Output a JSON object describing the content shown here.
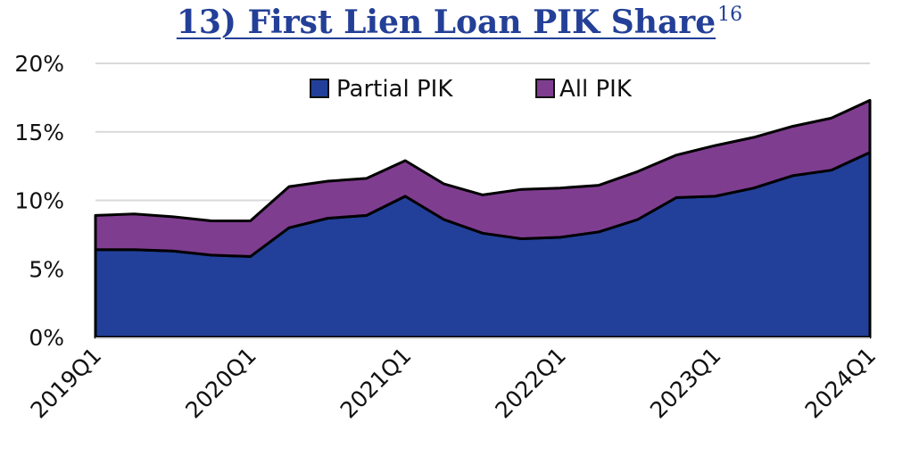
{
  "title": "13) First Lien Loan PIK Share",
  "title_superscript": "16",
  "chart_data": {
    "type": "area",
    "stacked": true,
    "title": "13) First Lien Loan PIK Share",
    "xlabel": "",
    "ylabel": "",
    "ylim": [
      0,
      20
    ],
    "yticks": [
      "0%",
      "5%",
      "10%",
      "15%",
      "20%"
    ],
    "xtick_labels": [
      "2019Q1",
      "2020Q1",
      "2021Q1",
      "2022Q1",
      "2023Q1",
      "2024Q1"
    ],
    "grid": "horizontal",
    "legend_position": "top-center-inside",
    "categories": [
      "2019Q1",
      "2019Q2",
      "2019Q3",
      "2019Q4",
      "2020Q1",
      "2020Q2",
      "2020Q3",
      "2020Q4",
      "2021Q1",
      "2021Q2",
      "2021Q3",
      "2021Q4",
      "2022Q1",
      "2022Q2",
      "2022Q3",
      "2022Q4",
      "2023Q1",
      "2023Q2",
      "2023Q3",
      "2023Q4",
      "2024Q1"
    ],
    "series": [
      {
        "name": "Partial PIK",
        "color": "#22409a",
        "values": [
          6.4,
          6.4,
          6.3,
          6.0,
          5.9,
          8.0,
          8.7,
          8.9,
          10.3,
          8.6,
          7.6,
          7.2,
          7.3,
          7.7,
          8.6,
          10.2,
          10.3,
          10.9,
          11.8,
          12.2,
          13.5
        ]
      },
      {
        "name": "All PIK",
        "color": "#7f3d90",
        "values": [
          2.5,
          2.6,
          2.5,
          2.5,
          2.6,
          3.0,
          2.7,
          2.7,
          2.6,
          2.6,
          2.8,
          3.6,
          3.6,
          3.4,
          3.5,
          3.1,
          3.7,
          3.7,
          3.6,
          3.8,
          3.8
        ]
      }
    ],
    "totals": [
      8.9,
      9.0,
      8.8,
      8.5,
      8.5,
      11.0,
      11.4,
      11.6,
      12.9,
      11.2,
      10.4,
      10.8,
      10.9,
      11.1,
      12.1,
      13.3,
      14.0,
      14.6,
      15.4,
      16.0,
      17.3
    ]
  },
  "legend": {
    "items": [
      {
        "label": "Partial PIK",
        "color": "#22409a"
      },
      {
        "label": "All PIK",
        "color": "#7f3d90"
      }
    ]
  },
  "axes": {
    "y_labels": [
      "20%",
      "15%",
      "10%",
      "5%",
      "0%"
    ],
    "x_labels": [
      "2019Q1",
      "2020Q1",
      "2021Q1",
      "2022Q1",
      "2023Q1",
      "2024Q1"
    ]
  }
}
